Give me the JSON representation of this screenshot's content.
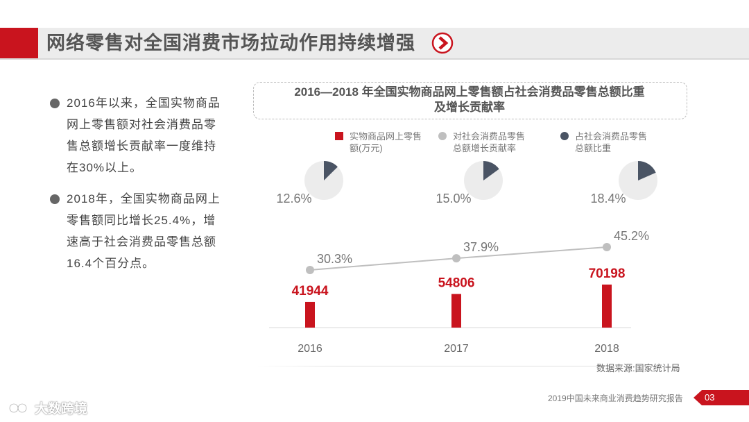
{
  "header": {
    "title": "网络零售对全国消费市场拉动作用持续增强"
  },
  "bullets": [
    "2016年以来，全国实物商品网上零售额对社会消费品零售总额增长贡献率一度维持在30%以上。",
    "2018年，全国实物商品网上零售额同比增长25.4%，增速高于社会消费品零售总额16.4个百分点。"
  ],
  "colors": {
    "accent": "#c9141e",
    "line": "#bfbfbf",
    "pie_slice": "#4a5464",
    "pie_base": "#ececec"
  },
  "chart_data": {
    "type": "bar",
    "title_line1": "2016—2018 年全国实物商品网上零售额占社会消费品零售总额比重",
    "title_line2": "及增长贡献率",
    "categories": [
      "2016",
      "2017",
      "2018"
    ],
    "legend": [
      {
        "label": "实物商品网上零售额(万元)",
        "color": "#c9141e",
        "shape": "square"
      },
      {
        "label": "对社会消费品零售总额增长贡献率",
        "color": "#bfbfbf",
        "shape": "circle"
      },
      {
        "label": "占社会消费品零售总额比重",
        "color": "#4a5464",
        "shape": "circle"
      }
    ],
    "series": [
      {
        "name": "实物商品网上零售额(万元)",
        "kind": "bar",
        "values": [
          41944,
          54806,
          70198
        ],
        "labels": [
          "41944",
          "54806",
          "70198"
        ]
      },
      {
        "name": "对社会消费品零售总额增长贡献率",
        "kind": "line",
        "values": [
          30.3,
          37.9,
          45.2
        ],
        "labels": [
          "30.3%",
          "37.9%",
          "45.2%"
        ]
      },
      {
        "name": "占社会消费品零售总额比重",
        "kind": "pie",
        "values": [
          12.6,
          15.0,
          18.4
        ],
        "labels": [
          "12.6%",
          "15.0%",
          "18.4%"
        ]
      }
    ],
    "source": "数据来源:国家统计局"
  },
  "footer": {
    "report": "2019中国未来商业消费趋势研究报告",
    "page": "03",
    "watermark": "大数跨境"
  }
}
